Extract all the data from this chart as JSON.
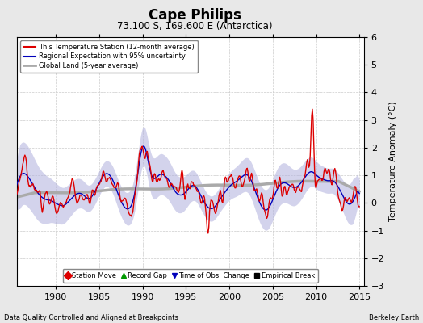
{
  "title": "Cape Philips",
  "subtitle": "73.100 S, 169.600 E (Antarctica)",
  "ylabel": "Temperature Anomaly (°C)",
  "footer_left": "Data Quality Controlled and Aligned at Breakpoints",
  "footer_right": "Berkeley Earth",
  "xlim": [
    1975.5,
    2015.5
  ],
  "ylim": [
    -3,
    6
  ],
  "yticks": [
    -3,
    -2,
    -1,
    0,
    1,
    2,
    3,
    4,
    5,
    6
  ],
  "xticks": [
    1980,
    1985,
    1990,
    1995,
    2000,
    2005,
    2010,
    2015
  ],
  "background_color": "#e8e8e8",
  "plot_bg_color": "#ffffff",
  "red_color": "#dd0000",
  "blue_color": "#0000bb",
  "blue_fill_color": "#b0b0dd",
  "gray_color": "#aaaaaa",
  "legend_items": [
    {
      "label": "This Temperature Station (12-month average)",
      "color": "#dd0000",
      "lw": 1.5
    },
    {
      "label": "Regional Expectation with 95% uncertainty",
      "color": "#0000bb",
      "lw": 1.5
    },
    {
      "label": "Global Land (5-year average)",
      "color": "#aaaaaa",
      "lw": 2.0
    }
  ],
  "bottom_legend": [
    {
      "label": "Station Move",
      "color": "#dd0000",
      "marker": "D"
    },
    {
      "label": "Record Gap",
      "color": "#009900",
      "marker": "^"
    },
    {
      "label": "Time of Obs. Change",
      "color": "#0000bb",
      "marker": "v"
    },
    {
      "label": "Empirical Break",
      "color": "#000000",
      "marker": "s"
    }
  ],
  "seed": 12345
}
